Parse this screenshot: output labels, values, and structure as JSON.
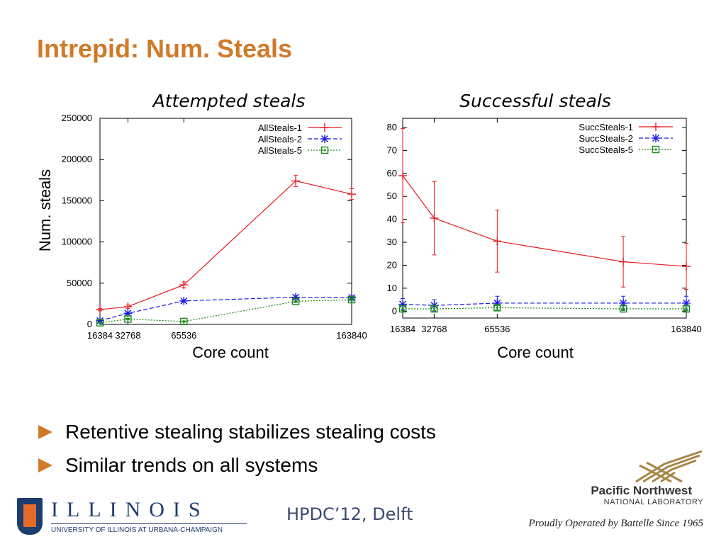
{
  "slide": {
    "title": "Intrepid: Num. Steals",
    "bullets": [
      "Retentive stealing stabilizes stealing costs",
      "Similar trends on all systems"
    ],
    "footer_center": "HPDC’12, Delft",
    "illinois_word": "ILLINOIS",
    "illinois_sub": "UNIVERSITY OF ILLINOIS AT URBANA-CHAMPAIGN",
    "pnnl_name": "Pacific Northwest",
    "pnnl_lab": "NATIONAL LABORATORY",
    "pnnl_tagline": "Proudly Operated by Battelle Since 1965",
    "accent_color": "#d07a2a"
  },
  "chart_data": [
    {
      "type": "line",
      "title": "Attempted steals",
      "xlabel": "Core count",
      "ylabel": "Num. steals",
      "x": [
        16384,
        32768,
        65536,
        131072,
        163840
      ],
      "xticks": [
        16384,
        32768,
        65536,
        163840
      ],
      "xlim": [
        16384,
        163840
      ],
      "yticks": [
        0,
        50000,
        100000,
        150000,
        200000,
        250000
      ],
      "ylim": [
        0,
        250000
      ],
      "legend_position": "top-right",
      "grid": false,
      "series": [
        {
          "name": "AllSteals-1",
          "color": "#e8191f",
          "marker": "plus",
          "dash": "",
          "values": [
            18000,
            21500,
            48000,
            174000,
            158000
          ],
          "err": [
            1500,
            2000,
            3500,
            7000,
            6500
          ]
        },
        {
          "name": "AllSteals-2",
          "color": "#1a1ae6",
          "marker": "star",
          "dash": "6,3",
          "values": [
            4500,
            13500,
            28500,
            33000,
            32500
          ],
          "err": [
            800,
            1500,
            1500,
            2000,
            2000
          ]
        },
        {
          "name": "AllSteals-5",
          "color": "#1a8a1a",
          "marker": "square",
          "dash": "2,2",
          "values": [
            2000,
            6500,
            3500,
            28000,
            30000
          ],
          "err": [
            500,
            800,
            600,
            1500,
            1500
          ]
        }
      ]
    },
    {
      "type": "line",
      "title": "Successful steals",
      "xlabel": "Core count",
      "ylabel": "",
      "x": [
        16384,
        32768,
        65536,
        131072,
        163840
      ],
      "xticks": [
        16384,
        32768,
        65536,
        163840
      ],
      "xlim": [
        16384,
        163840
      ],
      "yticks": [
        0,
        10,
        20,
        30,
        40,
        50,
        60,
        70,
        80
      ],
      "ylim": [
        -3,
        84
      ],
      "legend_position": "top-right",
      "grid": false,
      "series": [
        {
          "name": "SuccSteals-1",
          "color": "#e8191f",
          "marker": "plus",
          "dash": "",
          "values": [
            59,
            40.5,
            30.5,
            21.5,
            19.5
          ],
          "err": [
            20.5,
            16,
            13.5,
            11,
            10
          ]
        },
        {
          "name": "SuccSteals-2",
          "color": "#1a1ae6",
          "marker": "star",
          "dash": "6,3",
          "values": [
            3,
            2.5,
            3.5,
            3.5,
            3.5
          ],
          "err": [
            2.5,
            2.5,
            3,
            3,
            3
          ]
        },
        {
          "name": "SuccSteals-5",
          "color": "#1a8a1a",
          "marker": "square",
          "dash": "2,2",
          "values": [
            1,
            1,
            1.5,
            1,
            1
          ],
          "err": [
            0.8,
            0.8,
            1,
            0.8,
            0.8
          ]
        }
      ]
    }
  ]
}
